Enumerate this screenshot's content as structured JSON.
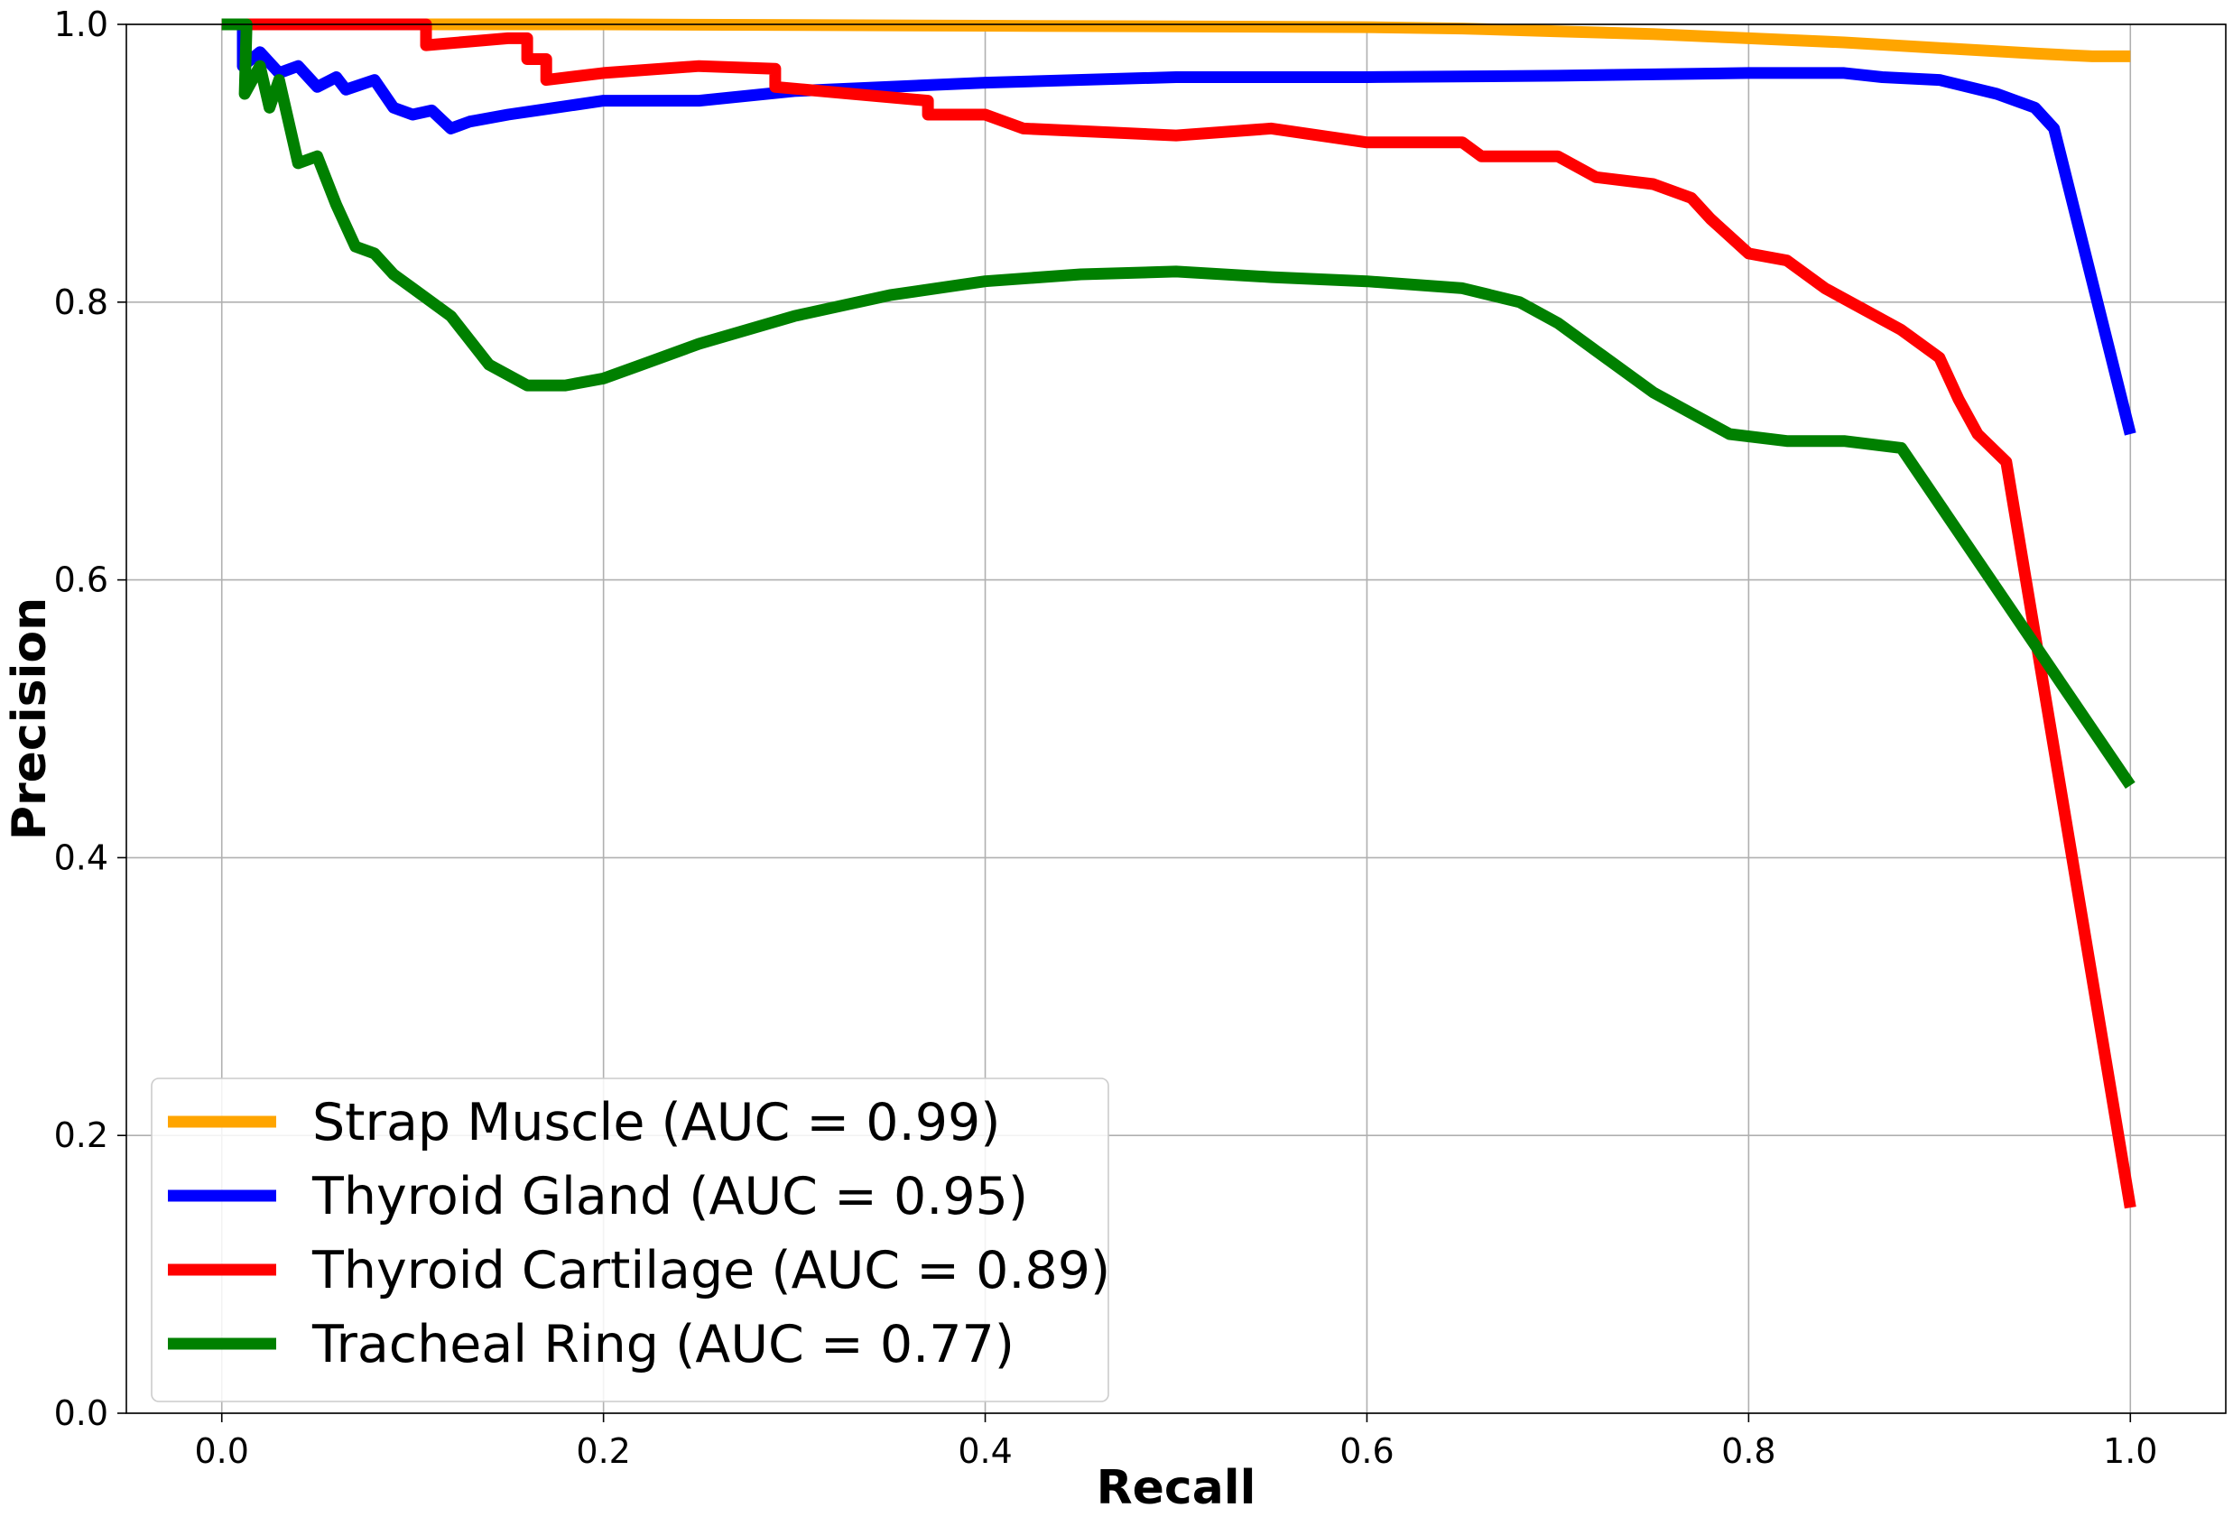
{
  "chart_data": {
    "type": "line",
    "title": "",
    "xlabel": "Recall",
    "ylabel": "Precision",
    "xlim": [
      -0.05,
      1.05
    ],
    "ylim": [
      0.0,
      1.0
    ],
    "xticks": [
      "0.0",
      "0.2",
      "0.4",
      "0.6",
      "0.8",
      "1.0"
    ],
    "yticks": [
      "0.0",
      "0.2",
      "0.4",
      "0.6",
      "0.8",
      "1.0"
    ],
    "grid": true,
    "legend_position": "lower-left",
    "series": [
      {
        "name": "Strap Muscle (AUC = 0.99)",
        "color": "#FFA500",
        "points": [
          [
            0.0,
            1.0
          ],
          [
            0.2,
            1.0
          ],
          [
            0.4,
            0.999
          ],
          [
            0.6,
            0.998
          ],
          [
            0.65,
            0.997
          ],
          [
            0.7,
            0.995
          ],
          [
            0.75,
            0.993
          ],
          [
            0.8,
            0.99
          ],
          [
            0.85,
            0.987
          ],
          [
            0.9,
            0.983
          ],
          [
            0.95,
            0.979
          ],
          [
            0.98,
            0.977
          ],
          [
            1.0,
            0.977
          ]
        ]
      },
      {
        "name": "Thyroid Gland (AUC = 0.95)",
        "color": "#0000FF",
        "points": [
          [
            0.0,
            1.0
          ],
          [
            0.011,
            1.0
          ],
          [
            0.011,
            0.97
          ],
          [
            0.02,
            0.98
          ],
          [
            0.03,
            0.965
          ],
          [
            0.04,
            0.97
          ],
          [
            0.05,
            0.955
          ],
          [
            0.06,
            0.962
          ],
          [
            0.065,
            0.953
          ],
          [
            0.08,
            0.96
          ],
          [
            0.09,
            0.94
          ],
          [
            0.1,
            0.935
          ],
          [
            0.11,
            0.938
          ],
          [
            0.12,
            0.925
          ],
          [
            0.13,
            0.93
          ],
          [
            0.15,
            0.935
          ],
          [
            0.2,
            0.945
          ],
          [
            0.25,
            0.945
          ],
          [
            0.3,
            0.952
          ],
          [
            0.4,
            0.958
          ],
          [
            0.5,
            0.962
          ],
          [
            0.6,
            0.962
          ],
          [
            0.7,
            0.963
          ],
          [
            0.8,
            0.965
          ],
          [
            0.85,
            0.965
          ],
          [
            0.87,
            0.962
          ],
          [
            0.9,
            0.96
          ],
          [
            0.93,
            0.95
          ],
          [
            0.95,
            0.94
          ],
          [
            0.96,
            0.925
          ],
          [
            1.0,
            0.705
          ]
        ]
      },
      {
        "name": "Thyroid Cartilage (AUC = 0.89)",
        "color": "#FF0000",
        "points": [
          [
            0.0,
            1.0
          ],
          [
            0.107,
            1.0
          ],
          [
            0.107,
            0.985
          ],
          [
            0.15,
            0.99
          ],
          [
            0.16,
            0.99
          ],
          [
            0.16,
            0.975
          ],
          [
            0.17,
            0.975
          ],
          [
            0.17,
            0.96
          ],
          [
            0.2,
            0.965
          ],
          [
            0.25,
            0.97
          ],
          [
            0.29,
            0.968
          ],
          [
            0.29,
            0.955
          ],
          [
            0.33,
            0.95
          ],
          [
            0.37,
            0.945
          ],
          [
            0.37,
            0.935
          ],
          [
            0.4,
            0.935
          ],
          [
            0.42,
            0.925
          ],
          [
            0.5,
            0.92
          ],
          [
            0.55,
            0.925
          ],
          [
            0.6,
            0.915
          ],
          [
            0.65,
            0.915
          ],
          [
            0.66,
            0.905
          ],
          [
            0.7,
            0.905
          ],
          [
            0.72,
            0.89
          ],
          [
            0.75,
            0.885
          ],
          [
            0.77,
            0.875
          ],
          [
            0.78,
            0.86
          ],
          [
            0.8,
            0.835
          ],
          [
            0.82,
            0.83
          ],
          [
            0.84,
            0.81
          ],
          [
            0.86,
            0.795
          ],
          [
            0.88,
            0.78
          ],
          [
            0.9,
            0.76
          ],
          [
            0.91,
            0.73
          ],
          [
            0.92,
            0.705
          ],
          [
            0.935,
            0.685
          ],
          [
            0.935,
            0.685
          ],
          [
            1.0,
            0.148
          ]
        ]
      },
      {
        "name": "Tracheal Ring (AUC = 0.77)",
        "color": "#008000",
        "points": [
          [
            0.0,
            1.0
          ],
          [
            0.013,
            1.0
          ],
          [
            0.012,
            0.95
          ],
          [
            0.02,
            0.97
          ],
          [
            0.025,
            0.94
          ],
          [
            0.03,
            0.96
          ],
          [
            0.04,
            0.9
          ],
          [
            0.05,
            0.905
          ],
          [
            0.06,
            0.87
          ],
          [
            0.07,
            0.84
          ],
          [
            0.08,
            0.835
          ],
          [
            0.09,
            0.82
          ],
          [
            0.1,
            0.81
          ],
          [
            0.12,
            0.79
          ],
          [
            0.14,
            0.755
          ],
          [
            0.16,
            0.74
          ],
          [
            0.18,
            0.74
          ],
          [
            0.2,
            0.745
          ],
          [
            0.22,
            0.755
          ],
          [
            0.25,
            0.77
          ],
          [
            0.3,
            0.79
          ],
          [
            0.35,
            0.805
          ],
          [
            0.4,
            0.815
          ],
          [
            0.45,
            0.82
          ],
          [
            0.5,
            0.822
          ],
          [
            0.55,
            0.818
          ],
          [
            0.6,
            0.815
          ],
          [
            0.65,
            0.81
          ],
          [
            0.68,
            0.8
          ],
          [
            0.7,
            0.785
          ],
          [
            0.72,
            0.765
          ],
          [
            0.75,
            0.735
          ],
          [
            0.77,
            0.72
          ],
          [
            0.79,
            0.705
          ],
          [
            0.82,
            0.7
          ],
          [
            0.85,
            0.7
          ],
          [
            0.88,
            0.695
          ],
          [
            1.0,
            0.452
          ]
        ]
      }
    ]
  }
}
